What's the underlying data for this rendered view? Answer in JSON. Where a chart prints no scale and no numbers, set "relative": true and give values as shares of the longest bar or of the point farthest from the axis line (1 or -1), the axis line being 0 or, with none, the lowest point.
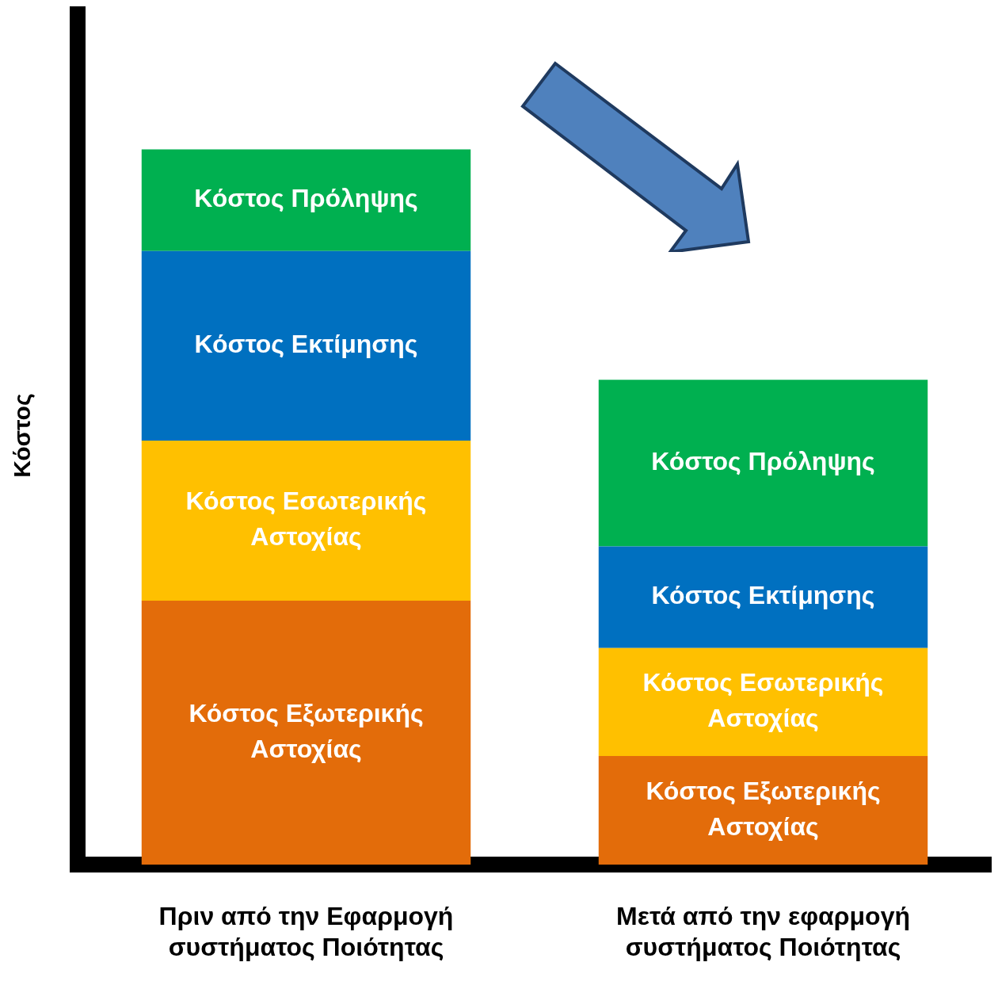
{
  "chart_data": {
    "type": "bar",
    "stacked": true,
    "relative": true,
    "ylabel": "Κόστος",
    "legend": false,
    "grid": false,
    "categories": [
      "Πριν από την Εφαρμογή συστήματος Ποιότητας",
      "Μετά από την εφαρμογή συστήματος Ποιότητας"
    ],
    "series": [
      {
        "name": "Κόστος Εξωτερικής Αστοχίας",
        "color": "#e36c0a",
        "values": [
          0.369,
          0.152
        ]
      },
      {
        "name": "Κόστος Εσωτερικής Αστοχίας",
        "color": "#ffc000",
        "values": [
          0.224,
          0.151
        ]
      },
      {
        "name": "Κόστος Εκτίμησης",
        "color": "#0070c0",
        "values": [
          0.265,
          0.142
        ]
      },
      {
        "name": "Κόστος Πρόληψης",
        "color": "#00b050",
        "values": [
          0.142,
          0.233
        ]
      }
    ]
  }
}
